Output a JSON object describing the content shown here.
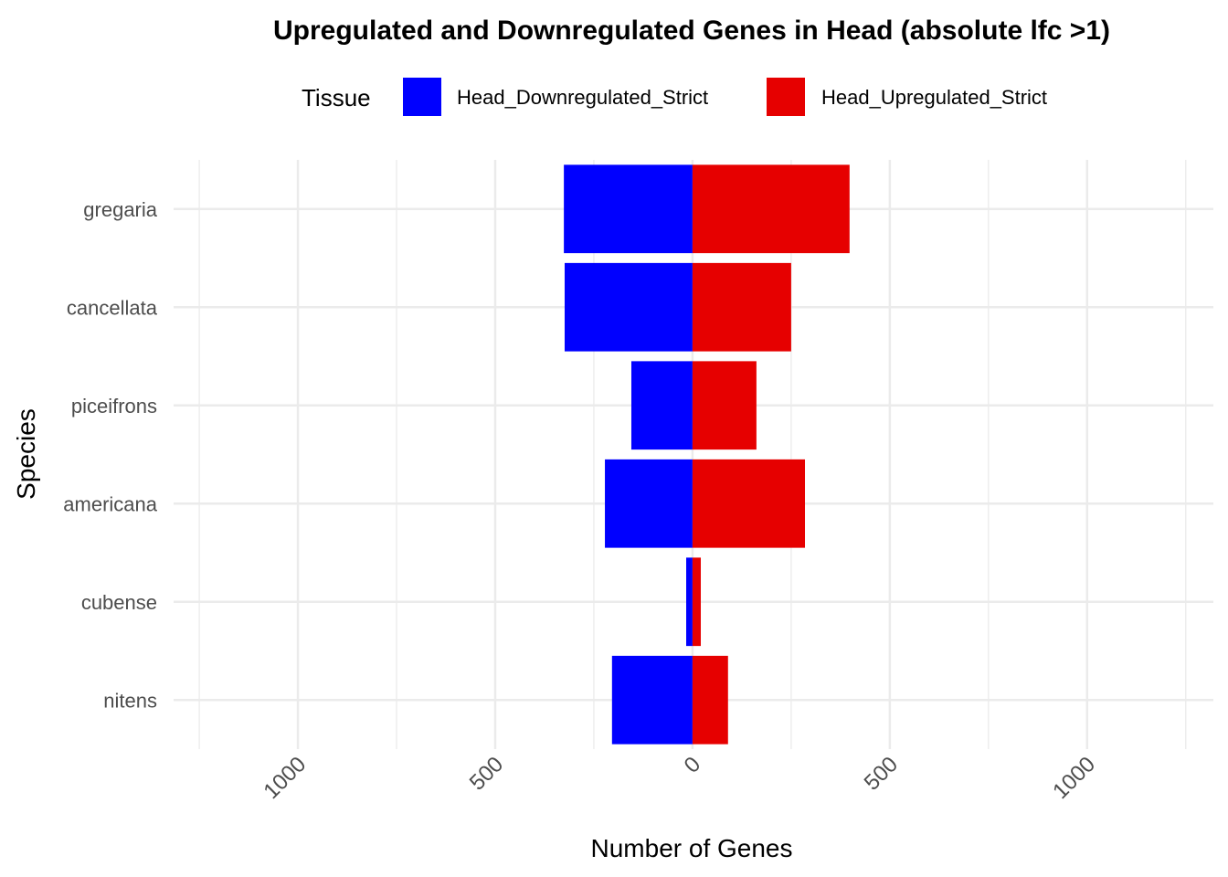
{
  "chart_data": {
    "type": "bar",
    "orientation": "horizontal-diverging",
    "title": "Upregulated and Downregulated Genes in Head (absolute lfc >1)",
    "xlabel": "Number of Genes",
    "ylabel": "Species",
    "legend": {
      "title": "Tissue",
      "placement": "top"
    },
    "categories": [
      "gregaria",
      "cancellata",
      "piceifrons",
      "americana",
      "cubense",
      "nitens"
    ],
    "series": [
      {
        "name": "Head_Downregulated_Strict",
        "color": "#0000FF",
        "values": [
          -326,
          -324,
          -155,
          -222,
          -16,
          -204
        ]
      },
      {
        "name": "Head_Upregulated_Strict",
        "color": "#E60000",
        "values": [
          398,
          250,
          162,
          285,
          21,
          90
        ]
      }
    ],
    "xticks": [
      -1000,
      -500,
      0,
      500,
      1000
    ],
    "xtick_labels": [
      "1000",
      "500",
      "0",
      "500",
      "1000"
    ],
    "xlim": [
      -1315,
      1320
    ],
    "grid": true
  }
}
